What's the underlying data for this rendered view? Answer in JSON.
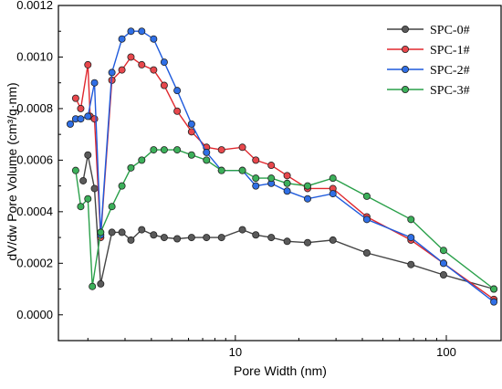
{
  "chart_data": {
    "type": "line",
    "xlabel": "Pore Width (nm)",
    "ylabel": "dV/dw Pore Volume (cm³/g·nm)",
    "xscale": "log",
    "xlim": [
      1.45,
      180
    ],
    "ylim": [
      -0.0001,
      0.0012
    ],
    "xticks": [
      10,
      100
    ],
    "xtick_labels": [
      "10",
      "100"
    ],
    "yticks": [
      0.0,
      0.0002,
      0.0004,
      0.0006,
      0.0008,
      0.001,
      0.0012
    ],
    "ytick_labels": [
      "0.0000",
      "0.0002",
      "0.0004",
      "0.0006",
      "0.0008",
      "0.0010",
      "0.0012"
    ],
    "grid": false,
    "legend_position": "top-right",
    "series": [
      {
        "name": "SPC-0#",
        "color": "#444444",
        "fill": "#5a5a5a",
        "x": [
          1.9,
          2.0,
          2.15,
          2.3,
          2.6,
          2.9,
          3.2,
          3.6,
          4.1,
          4.6,
          5.3,
          6.2,
          7.3,
          8.6,
          10.8,
          12.5,
          14.8,
          17.6,
          22.0,
          29.0,
          42.0,
          68.0,
          97.0,
          168.0
        ],
        "values": [
          0.00052,
          0.00062,
          0.00049,
          0.00012,
          0.00032,
          0.00032,
          0.00029,
          0.00033,
          0.00031,
          0.0003,
          0.000295,
          0.0003,
          0.0003,
          0.0003,
          0.00033,
          0.00031,
          0.0003,
          0.000285,
          0.00028,
          0.00029,
          0.00024,
          0.000195,
          0.000155,
          0.0001
        ]
      },
      {
        "name": "SPC-1#",
        "color": "#e0282e",
        "fill": "#e8474c",
        "x": [
          1.75,
          1.85,
          2.0,
          2.05,
          2.15,
          2.3,
          2.6,
          2.9,
          3.2,
          3.6,
          4.1,
          4.6,
          5.3,
          6.2,
          7.3,
          8.6,
          10.8,
          12.5,
          14.8,
          17.6,
          22.0,
          29.0,
          42.0,
          68.0,
          97.0,
          168.0
        ],
        "values": [
          0.00084,
          0.0008,
          0.00097,
          0.00077,
          0.00076,
          0.0003,
          0.00091,
          0.00095,
          0.001,
          0.00097,
          0.00095,
          0.00089,
          0.00079,
          0.00071,
          0.00065,
          0.00064,
          0.00065,
          0.0006,
          0.00058,
          0.00054,
          0.00049,
          0.00049,
          0.00038,
          0.00029,
          0.0002,
          6e-05
        ]
      },
      {
        "name": "SPC-2#",
        "color": "#1e5adc",
        "fill": "#2f6fe6",
        "x": [
          1.65,
          1.75,
          1.85,
          2.0,
          2.15,
          2.3,
          2.6,
          2.9,
          3.2,
          3.6,
          4.1,
          4.6,
          5.3,
          6.2,
          7.3,
          8.6,
          10.8,
          12.5,
          14.8,
          17.6,
          22.0,
          29.0,
          42.0,
          68.0,
          97.0,
          168.0
        ],
        "values": [
          0.00074,
          0.00076,
          0.00076,
          0.00077,
          0.0009,
          0.00031,
          0.00094,
          0.00107,
          0.0011,
          0.0011,
          0.00107,
          0.00098,
          0.00087,
          0.00074,
          0.00063,
          0.00056,
          0.00056,
          0.0005,
          0.00051,
          0.00048,
          0.00045,
          0.00047,
          0.00037,
          0.0003,
          0.0002,
          5e-05
        ]
      },
      {
        "name": "SPC-3#",
        "color": "#2aa04a",
        "fill": "#3cb05a",
        "x": [
          1.75,
          1.85,
          2.0,
          2.1,
          2.3,
          2.6,
          2.9,
          3.2,
          3.6,
          4.1,
          4.6,
          5.3,
          6.2,
          7.3,
          8.6,
          10.8,
          12.5,
          14.8,
          17.6,
          22.0,
          29.0,
          42.0,
          68.0,
          97.0,
          168.0
        ],
        "values": [
          0.00056,
          0.00042,
          0.00045,
          0.00011,
          0.00032,
          0.00042,
          0.0005,
          0.00057,
          0.0006,
          0.00064,
          0.00064,
          0.00064,
          0.00062,
          0.0006,
          0.00056,
          0.00056,
          0.00053,
          0.00053,
          0.00051,
          0.0005,
          0.00053,
          0.00046,
          0.00037,
          0.00025,
          0.0001
        ]
      }
    ]
  }
}
